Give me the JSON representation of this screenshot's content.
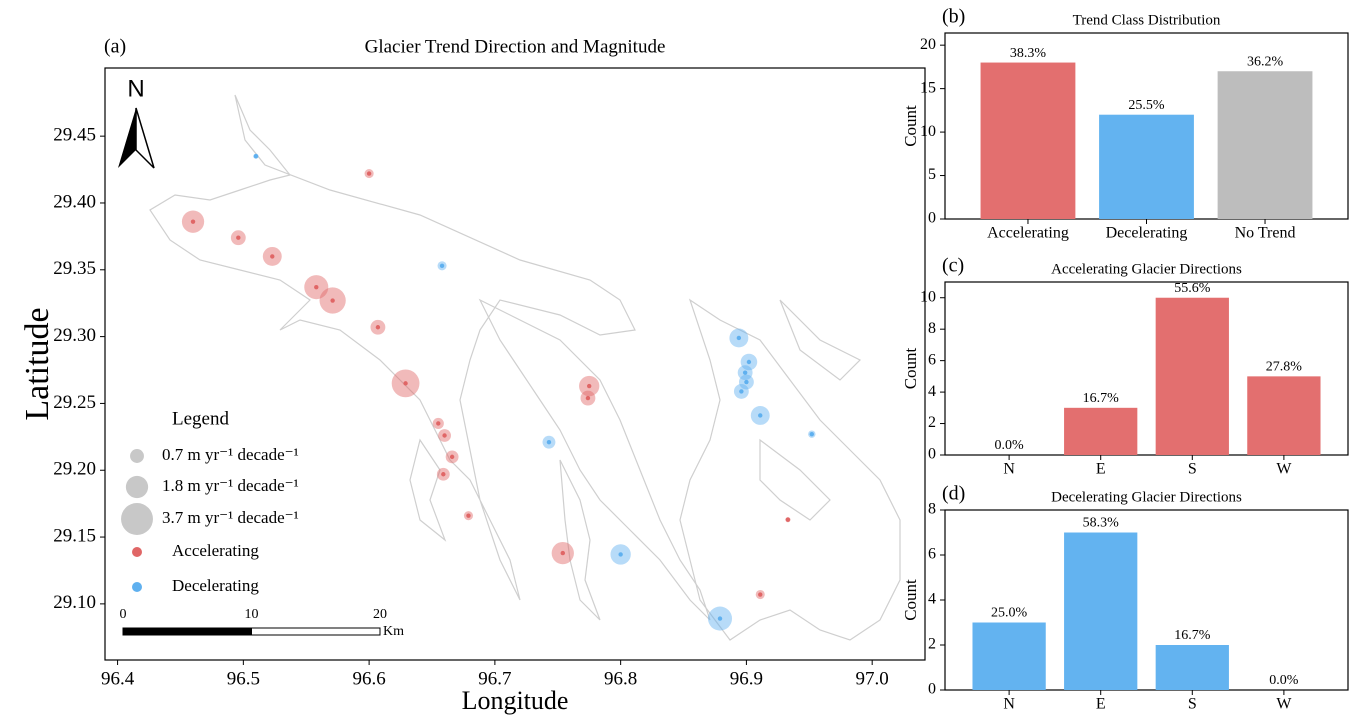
{
  "chart_data": [
    {
      "type": "scatter",
      "panel_label": "(a)",
      "title": "Glacier Trend Direction and Magnitude",
      "x_label": "Longitude",
      "y_label": "Latitude",
      "xlim": [
        96.39,
        97.042
      ],
      "ylim": [
        29.058,
        29.501
      ],
      "xticks": [
        96.4,
        96.5,
        96.6,
        96.7,
        96.8,
        96.9,
        {
          "value": 97,
          "label": "97.0"
        }
      ],
      "yticks": [
        29.45,
        {
          "value": 29.4,
          "label": "29.40"
        },
        29.35,
        {
          "value": 29.3,
          "label": "29.30"
        },
        29.25,
        {
          "value": 29.2,
          "label": "29.20"
        },
        29.15,
        {
          "value": 29.1,
          "label": "29.10"
        }
      ],
      "legend_title": "Legend",
      "size_legend": [
        {
          "value": 0.7,
          "label": "0.7 m yr⁻¹ decade⁻¹"
        },
        {
          "value": 1.8,
          "label": "1.8 m yr⁻¹ decade⁻¹"
        },
        {
          "value": 3.7,
          "label": "3.7 m yr⁻¹ decade⁻¹"
        }
      ],
      "north_label": "N",
      "scale_bar": {
        "ticks": [
          0,
          10,
          20
        ],
        "unit": "Km"
      },
      "series": [
        {
          "name": "Accelerating",
          "color": "#e06666",
          "x": [
            96.46,
            96.496,
            96.523,
            96.558,
            96.571,
            96.607,
            96.629,
            96.655,
            96.66,
            96.666,
            96.659,
            96.679,
            96.754,
            96.775,
            96.774,
            96.6,
            96.933,
            96.911
          ],
          "y": [
            29.386,
            29.374,
            29.36,
            29.337,
            29.327,
            29.307,
            29.265,
            29.235,
            29.226,
            29.21,
            29.197,
            29.166,
            29.138,
            29.263,
            29.254,
            29.422,
            29.163,
            29.107
          ],
          "sizes": [
            1.8,
            0.8,
            1.3,
            2.1,
            2.5,
            0.8,
            2.8,
            0.45,
            0.6,
            0.6,
            0.6,
            0.3,
            1.8,
            1.5,
            0.8,
            0.3,
            0.1,
            0.3
          ]
        },
        {
          "name": "Decelerating",
          "color": "#5fb0ef",
          "x": [
            96.51,
            96.658,
            96.743,
            96.8,
            96.879,
            96.894,
            96.902,
            96.899,
            96.9,
            96.896,
            96.911,
            96.952
          ],
          "y": [
            29.435,
            29.353,
            29.221,
            29.137,
            29.089,
            29.299,
            29.281,
            29.273,
            29.266,
            29.259,
            29.241,
            29.227
          ],
          "sizes": [
            0.1,
            0.3,
            0.6,
            1.5,
            2.1,
            1.3,
            1.0,
            0.8,
            0.8,
            0.8,
            1.3,
            0.2
          ]
        }
      ]
    },
    {
      "type": "bar",
      "panel_label": "(b)",
      "title": "Trend Class Distribution",
      "y_label": "Count",
      "categories": [
        "Accelerating",
        "Decelerating",
        "No Trend"
      ],
      "values": [
        18,
        12,
        17
      ],
      "colors": [
        "#e36f6f",
        "#63b3f0",
        "#bdbdbd"
      ],
      "percent_labels": [
        {
          "value": 38.3,
          "label": "38.3%"
        },
        {
          "value": 25.5,
          "label": "25.5%"
        },
        {
          "value": 36.2,
          "label": "36.2%"
        }
      ],
      "ylim": [
        0,
        21.4
      ],
      "yticks": [
        0,
        5,
        10,
        15,
        20
      ]
    },
    {
      "type": "bar",
      "panel_label": "(c)",
      "title": "Accelerating Glacier Directions",
      "y_label": "Count",
      "categories": [
        "N",
        "E",
        "S",
        "W"
      ],
      "values": [
        0,
        3,
        10,
        5
      ],
      "colors": [
        "#e36f6f",
        "#e36f6f",
        "#e36f6f",
        "#e36f6f"
      ],
      "percent_labels": [
        {
          "value": 0,
          "label": "0.0%"
        },
        {
          "value": 16.7,
          "label": "16.7%"
        },
        {
          "value": 55.6,
          "label": "55.6%"
        },
        {
          "value": 27.8,
          "label": "27.8%"
        }
      ],
      "ylim": [
        0,
        11
      ],
      "yticks": [
        0,
        2,
        4,
        6,
        8,
        10
      ]
    },
    {
      "type": "bar",
      "panel_label": "(d)",
      "title": "Decelerating Glacier Directions",
      "y_label": "Count",
      "categories": [
        "N",
        "E",
        "S",
        "W"
      ],
      "values": [
        3,
        7,
        2,
        0
      ],
      "colors": [
        "#63b3f0",
        "#63b3f0",
        "#63b3f0",
        "#63b3f0"
      ],
      "percent_labels": [
        {
          "value": 25,
          "label": "25.0%"
        },
        {
          "value": 58.3,
          "label": "58.3%"
        },
        {
          "value": 16.7,
          "label": "16.7%"
        },
        {
          "value": 0,
          "label": "0.0%"
        }
      ],
      "ylim": [
        0,
        8
      ],
      "yticks": [
        0,
        2,
        4,
        6,
        8
      ]
    }
  ]
}
